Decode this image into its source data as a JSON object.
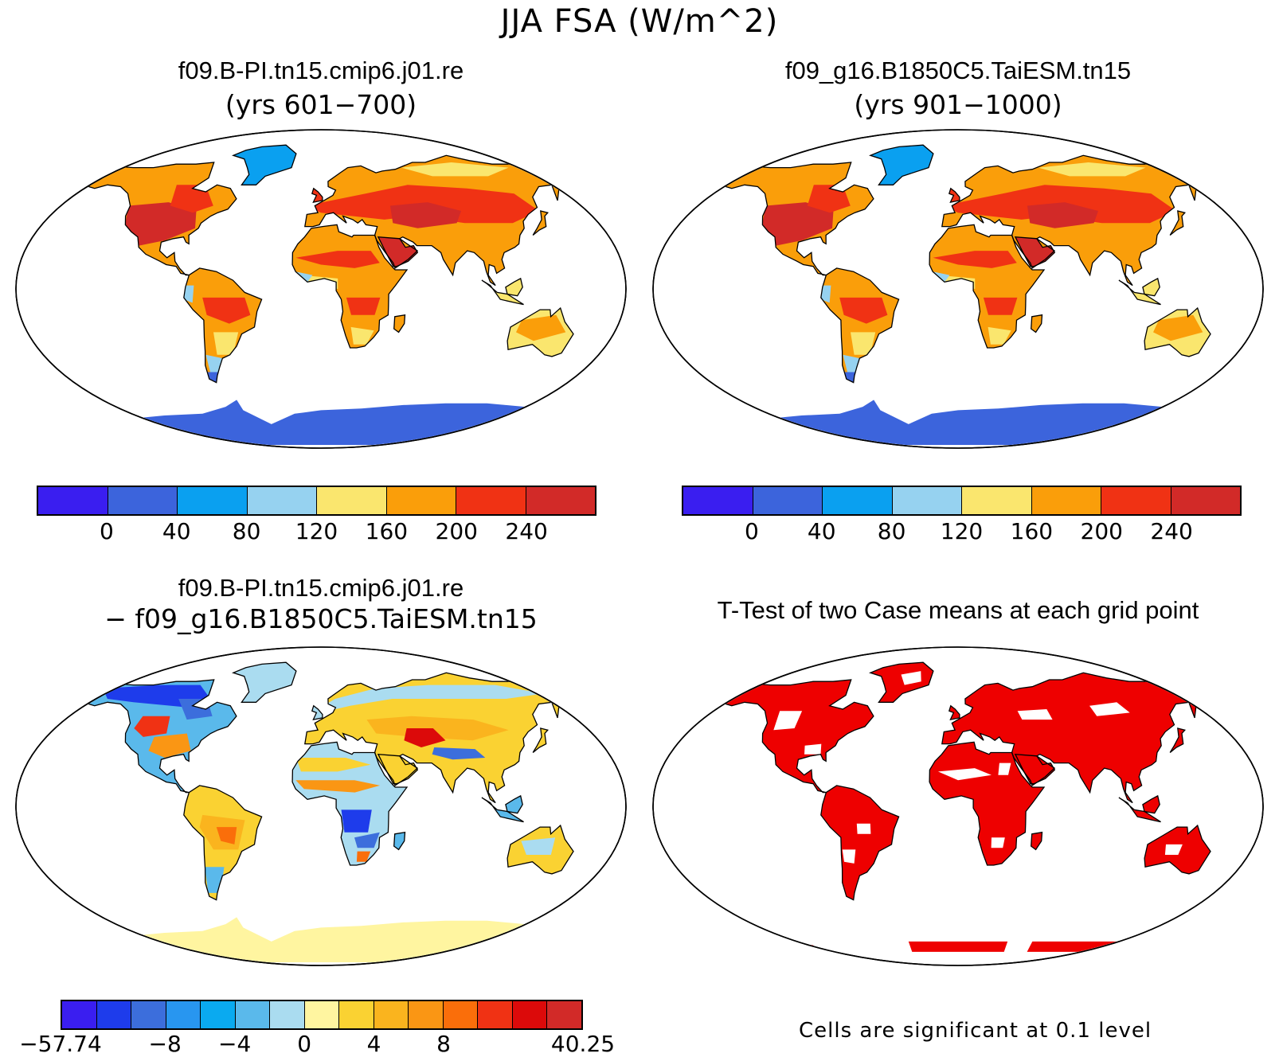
{
  "title": "JJA FSA (W/m^2)",
  "panels": {
    "case1": {
      "title": "f09.B-PI.tn15.cmip6.j01.re",
      "years": "(yrs 601−700)"
    },
    "case2": {
      "title": "f09_g16.B1850C5.TaiESM.tn15",
      "years": "(yrs 901−1000)"
    },
    "diff": {
      "title": "f09.B-PI.tn15.cmip6.j01.re",
      "subtitle": "− f09_g16.B1850C5.TaiESM.tn15"
    },
    "ttest": {
      "title": "T-Test of two Case means at each grid point",
      "note": "Cells are significant at 0.1 level",
      "significant_color": "#ee0000"
    }
  },
  "colorbar_main": {
    "colors": [
      "#3a1ef0",
      "#3c64dc",
      "#0aa0f0",
      "#96d2f0",
      "#fae66e",
      "#fa9e0a",
      "#f03214",
      "#d22a28"
    ],
    "ticks": [
      "0",
      "40",
      "80",
      "120",
      "160",
      "200",
      "240"
    ]
  },
  "colorbar_diff": {
    "colors": [
      "#3a1ef0",
      "#1e3ceb",
      "#3c6edc",
      "#2896f0",
      "#0aaaf0",
      "#5ab9eb",
      "#aadcf0",
      "#fff5a0",
      "#fad232",
      "#fab41e",
      "#fa9614",
      "#fa6e0a",
      "#f03214",
      "#dc0a0a",
      "#d22a28"
    ],
    "ticks": [
      "−57.74",
      "−8",
      "−4",
      "0",
      "4",
      "8",
      "40.25"
    ]
  }
}
